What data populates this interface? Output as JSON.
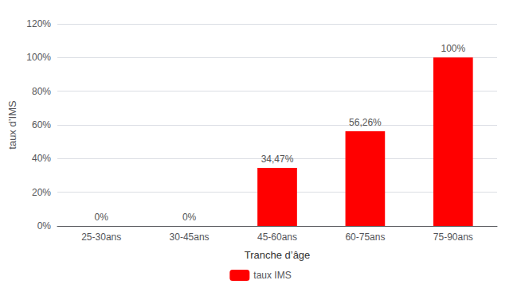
{
  "chart_data": {
    "type": "bar",
    "xlabel": "Tranche d’âge",
    "ylabel": "taux d’IMS",
    "categories": [
      "25-30ans",
      "30-45ans",
      "45-60ans",
      "60-75ans",
      "75-90ans"
    ],
    "series": [
      {
        "name": "taux IMS",
        "color": "#ff0000",
        "values": [
          0,
          0,
          34.47,
          56.26,
          100
        ],
        "value_labels": [
          "0%",
          "0%",
          "34,47%",
          "56,26%",
          "100%"
        ]
      }
    ],
    "data_labels": true,
    "ylim": [
      0,
      120
    ],
    "yticks": [
      {
        "value": 0,
        "label": "0%"
      },
      {
        "value": 20,
        "label": "20%"
      },
      {
        "value": 40,
        "label": "40%"
      },
      {
        "value": 60,
        "label": "60%"
      },
      {
        "value": 80,
        "label": "80%"
      },
      {
        "value": 100,
        "label": "100%"
      },
      {
        "value": 120,
        "label": "120%"
      }
    ],
    "grid": true,
    "legend": "bottom"
  }
}
